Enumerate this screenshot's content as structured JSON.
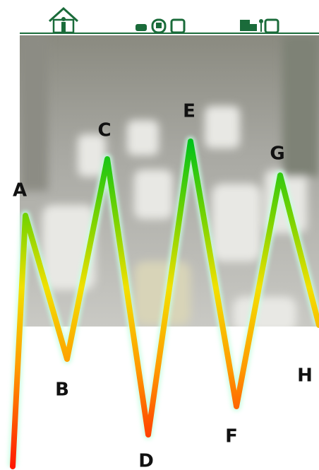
{
  "labels": [
    "A",
    "B",
    "C",
    "D",
    "E",
    "F",
    "G",
    "H"
  ]
}
